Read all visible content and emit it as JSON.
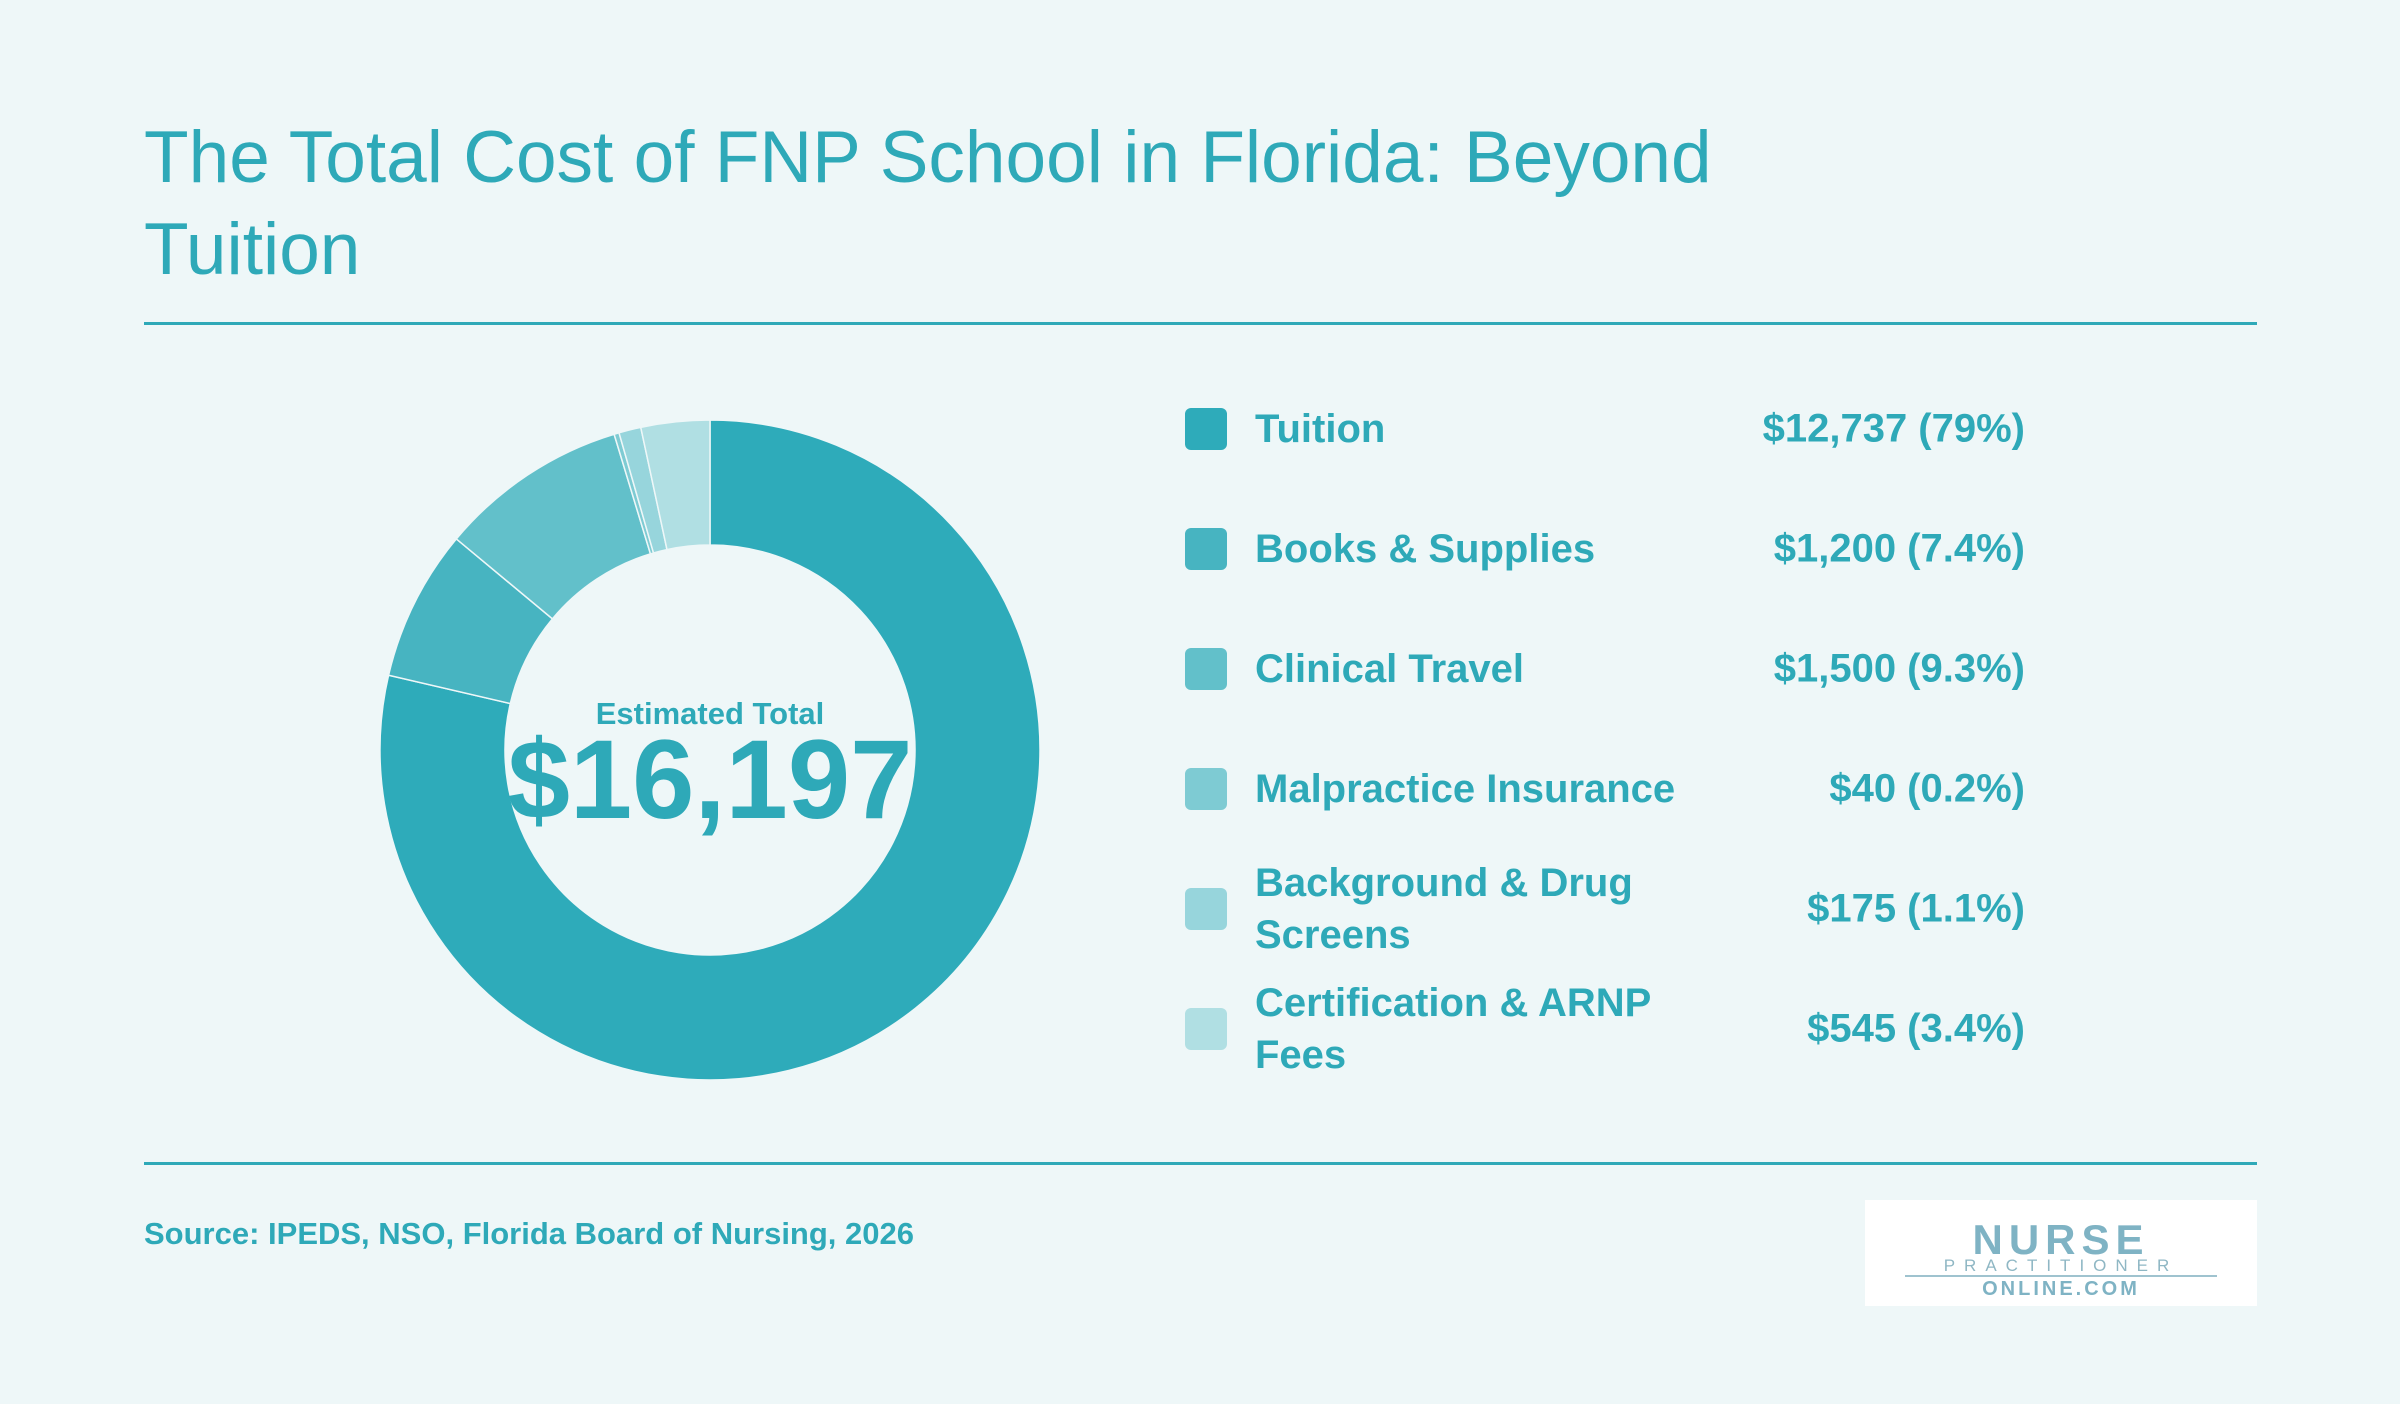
{
  "title": "The Total Cost of FNP School in Florida: Beyond Tuition",
  "center": {
    "label": "Estimated Total",
    "value": "$16,197"
  },
  "chart_data": {
    "type": "pie",
    "donut": true,
    "title": "The Total Cost of FNP School in Florida: Beyond Tuition",
    "total": 16197,
    "legend_position": "right",
    "categories": [
      "Tuition",
      "Books & Supplies",
      "Clinical Travel",
      "Malpractice Insurance",
      "Background & Drug Screens",
      "Certification & ARNP Fees"
    ],
    "values": [
      12737,
      1200,
      1500,
      40,
      175,
      545
    ],
    "percents": [
      79,
      7.4,
      9.3,
      0.2,
      1.1,
      3.4
    ],
    "colors": [
      "#2eabba",
      "#47b4c1",
      "#62c0ca",
      "#7ecbd3",
      "#97d5dc",
      "#b0dfe3"
    ],
    "value_labels": [
      "$12,737 (79%)",
      "$1,200 (7.4%)",
      "$1,500 (9.3%)",
      "$40 (0.2%)",
      "$175 (1.1%)",
      "$545 (3.4%)"
    ]
  },
  "source": "Source: IPEDS, NSO, Florida Board of Nursing, 2026",
  "logo": {
    "line1": "NURSE",
    "line2": "PRACTITIONER",
    "line3": "ONLINE.COM"
  }
}
